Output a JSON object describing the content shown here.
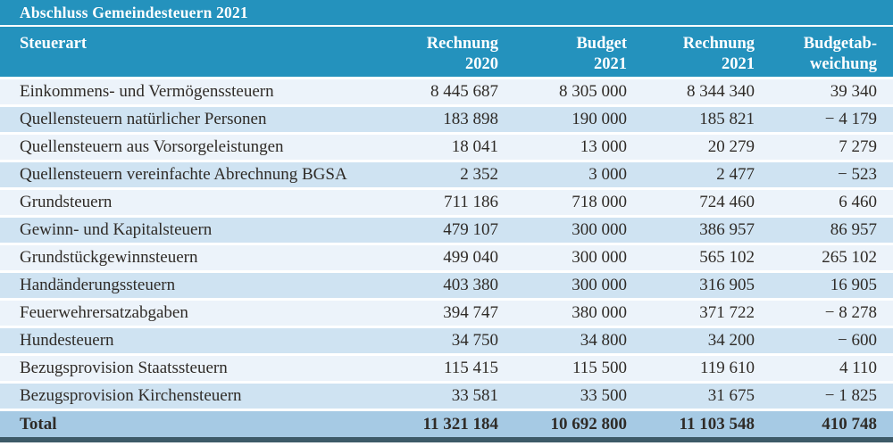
{
  "page": {
    "title": "Abschluss Gemeindesteuern 2021"
  },
  "table": {
    "header": {
      "steuerart": "Steuerart",
      "cols": [
        {
          "line1": "Rechnung",
          "line2": "2020"
        },
        {
          "line1": "Budget",
          "line2": "2021"
        },
        {
          "line1": "Rechnung",
          "line2": "2021"
        },
        {
          "line1": "Budgetab-",
          "line2": "weichung"
        }
      ]
    },
    "rows": [
      {
        "name": "Einkommens- und Vermögenssteuern",
        "values": [
          "8 445 687",
          "8 305 000",
          "8 344 340",
          "39 340"
        ]
      },
      {
        "name": "Quellensteuern natürlicher Personen",
        "values": [
          "183 898",
          "190 000",
          "185 821",
          "− 4 179"
        ]
      },
      {
        "name": "Quellensteuern aus Vorsorgeleistungen",
        "values": [
          "18 041",
          "13 000",
          "20 279",
          "7 279"
        ]
      },
      {
        "name": "Quellensteuern vereinfachte Abrechnung BGSA",
        "values": [
          "2 352",
          "3 000",
          "2 477",
          "− 523"
        ]
      },
      {
        "name": "Grundsteuern",
        "values": [
          "711 186",
          "718 000",
          "724 460",
          "6 460"
        ]
      },
      {
        "name": "Gewinn- und Kapitalsteuern",
        "values": [
          "479 107",
          "300 000",
          "386 957",
          "86 957"
        ]
      },
      {
        "name": "Grundstückgewinnsteuern",
        "values": [
          "499 040",
          "300 000",
          "565 102",
          "265 102"
        ]
      },
      {
        "name": "Handänderungssteuern",
        "values": [
          "403 380",
          "300 000",
          "316 905",
          "16 905"
        ]
      },
      {
        "name": "Feuerwehrersatzabgaben",
        "values": [
          "394 747",
          "380 000",
          "371 722",
          "− 8 278"
        ]
      },
      {
        "name": "Hundesteuern",
        "values": [
          "34 750",
          "34 800",
          "34 200",
          "− 600"
        ]
      },
      {
        "name": "Bezugsprovision Staatssteuern",
        "values": [
          "115 415",
          "115 500",
          "119 610",
          "4 110"
        ]
      },
      {
        "name": "Bezugsprovision Kirchensteuern",
        "values": [
          "33 581",
          "33 500",
          "31 675",
          "− 1 825"
        ]
      }
    ],
    "total": {
      "name": "Total",
      "values": [
        "11 321 184",
        "10 692 800",
        "11 103 548",
        "410 748"
      ]
    }
  },
  "colors": {
    "teal_header": "#2492bd",
    "row_light": "#ecf3fa",
    "row_shaded": "#cfe3f2",
    "total_row": "#a6cae4",
    "bottom_bar": "#3d5a68",
    "header_text": "#ffffff",
    "body_text": "#2f2b27"
  },
  "chart_data": {
    "type": "table",
    "title": "Abschluss Gemeindesteuern 2021",
    "columns": [
      "Steuerart",
      "Rechnung 2020",
      "Budget 2021",
      "Rechnung 2021",
      "Budgetabweichung"
    ],
    "rows": [
      [
        "Einkommens- und Vermögenssteuern",
        8445687,
        8305000,
        8344340,
        39340
      ],
      [
        "Quellensteuern natürlicher Personen",
        183898,
        190000,
        185821,
        -4179
      ],
      [
        "Quellensteuern aus Vorsorgeleistungen",
        18041,
        13000,
        20279,
        7279
      ],
      [
        "Quellensteuern vereinfachte Abrechnung BGSA",
        2352,
        3000,
        2477,
        -523
      ],
      [
        "Grundsteuern",
        711186,
        718000,
        724460,
        6460
      ],
      [
        "Gewinn- und Kapitalsteuern",
        479107,
        300000,
        386957,
        86957
      ],
      [
        "Grundstückgewinnsteuern",
        499040,
        300000,
        565102,
        265102
      ],
      [
        "Handänderungssteuern",
        403380,
        300000,
        316905,
        16905
      ],
      [
        "Feuerwehrersatzabgaben",
        394747,
        380000,
        371722,
        -8278
      ],
      [
        "Hundesteuern",
        34750,
        34800,
        34200,
        -600
      ],
      [
        "Bezugsprovision Staatssteuern",
        115415,
        115500,
        119610,
        4110
      ],
      [
        "Bezugsprovision Kirchensteuern",
        33581,
        33500,
        31675,
        -1825
      ],
      [
        "Total",
        11321184,
        10692800,
        11103548,
        410748
      ]
    ]
  }
}
